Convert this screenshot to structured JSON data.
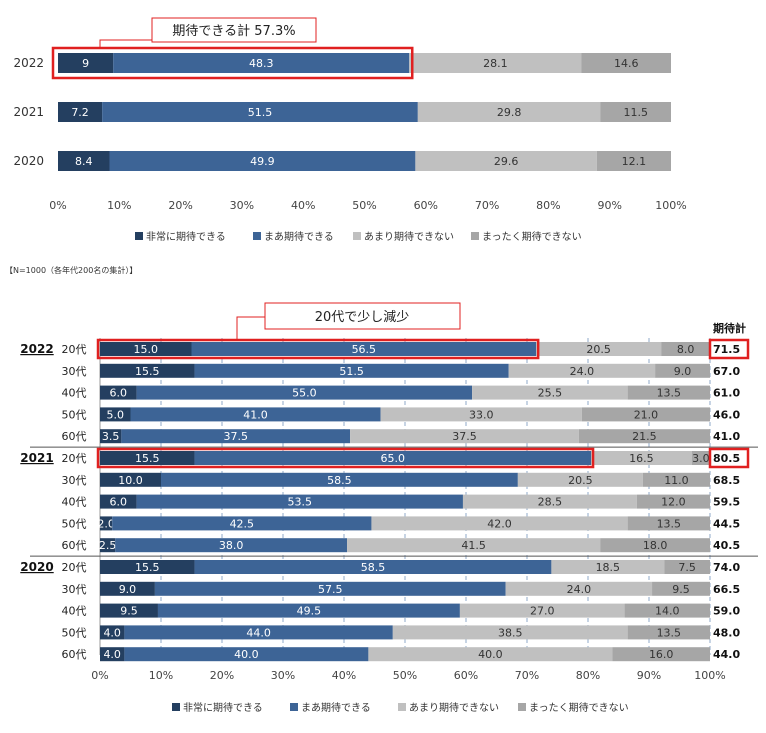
{
  "chart_data": [
    {
      "type": "bar",
      "orientation": "horizontal",
      "stacked": true,
      "categories": [
        "2022",
        "2021",
        "2020"
      ],
      "series": [
        {
          "name": "非常に期待できる",
          "values": [
            9,
            7.2,
            8.4
          ],
          "labels": [
            "9",
            "7.2",
            "8.4"
          ],
          "color": "#243f60"
        },
        {
          "name": "まあ期待できる",
          "values": [
            48.3,
            51.5,
            49.9
          ],
          "labels": [
            "48.3",
            "51.5",
            "49.9"
          ],
          "color": "#3d6496"
        },
        {
          "name": "あまり期待できない",
          "values": [
            28.1,
            29.8,
            29.6
          ],
          "labels": [
            "28.1",
            "29.8",
            "29.6"
          ],
          "color": "#c0c0c0"
        },
        {
          "name": "まったく期待できない",
          "values": [
            14.6,
            11.5,
            12.1
          ],
          "labels": [
            "14.6",
            "11.5",
            "12.1"
          ],
          "color": "#a6a6a6"
        }
      ],
      "xlim": [
        0,
        100
      ],
      "xticks": [
        "0%",
        "10%",
        "20%",
        "30%",
        "40%",
        "50%",
        "60%",
        "70%",
        "80%",
        "90%",
        "100%"
      ],
      "grid": false,
      "legend_position": "bottom",
      "callout": {
        "text": "期待できる計  57.3%",
        "category": "2022"
      }
    },
    {
      "type": "bar",
      "orientation": "horizontal",
      "stacked": true,
      "note": "【N=1000（各年代200名の集計）】",
      "total_header": "期待計",
      "groups": [
        "2022",
        "2021",
        "2020"
      ],
      "categories": [
        "20代",
        "30代",
        "40代",
        "50代",
        "60代"
      ],
      "rows": [
        {
          "group": "2022",
          "category": "20代",
          "values": [
            15.0,
            56.5,
            20.5,
            8.0
          ],
          "labels": [
            "15.0",
            "56.5",
            "20.5",
            "8.0"
          ],
          "total": "71.5"
        },
        {
          "group": "2022",
          "category": "30代",
          "values": [
            15.5,
            51.5,
            24.0,
            9.0
          ],
          "labels": [
            "15.5",
            "51.5",
            "24.0",
            "9.0"
          ],
          "total": "67.0"
        },
        {
          "group": "2022",
          "category": "40代",
          "values": [
            6.0,
            55.0,
            25.5,
            13.5
          ],
          "labels": [
            "6.0",
            "55.0",
            "25.5",
            "13.5"
          ],
          "total": "61.0"
        },
        {
          "group": "2022",
          "category": "50代",
          "values": [
            5.0,
            41.0,
            33.0,
            21.0
          ],
          "labels": [
            "5.0",
            "41.0",
            "33.0",
            "21.0"
          ],
          "total": "46.0"
        },
        {
          "group": "2022",
          "category": "60代",
          "values": [
            3.5,
            37.5,
            37.5,
            21.5
          ],
          "labels": [
            "3.5",
            "37.5",
            "37.5",
            "21.5"
          ],
          "total": "41.0"
        },
        {
          "group": "2021",
          "category": "20代",
          "values": [
            15.5,
            65.0,
            16.5,
            3.0
          ],
          "labels": [
            "15.5",
            "65.0",
            "16.5",
            "3.0"
          ],
          "total": "80.5"
        },
        {
          "group": "2021",
          "category": "30代",
          "values": [
            10.0,
            58.5,
            20.5,
            11.0
          ],
          "labels": [
            "10.0",
            "58.5",
            "20.5",
            "11.0"
          ],
          "total": "68.5"
        },
        {
          "group": "2021",
          "category": "40代",
          "values": [
            6.0,
            53.5,
            28.5,
            12.0
          ],
          "labels": [
            "6.0",
            "53.5",
            "28.5",
            "12.0"
          ],
          "total": "59.5"
        },
        {
          "group": "2021",
          "category": "50代",
          "values": [
            2.0,
            42.5,
            42.0,
            13.5
          ],
          "labels": [
            "2.0",
            "42.5",
            "42.0",
            "13.5"
          ],
          "total": "44.5"
        },
        {
          "group": "2021",
          "category": "60代",
          "values": [
            2.5,
            38.0,
            41.5,
            18.0
          ],
          "labels": [
            "2.5",
            "38.0",
            "41.5",
            "18.0"
          ],
          "total": "40.5"
        },
        {
          "group": "2020",
          "category": "20代",
          "values": [
            15.5,
            58.5,
            18.5,
            7.5
          ],
          "labels": [
            "15.5",
            "58.5",
            "18.5",
            "7.5"
          ],
          "total": "74.0"
        },
        {
          "group": "2020",
          "category": "30代",
          "values": [
            9.0,
            57.5,
            24.0,
            9.5
          ],
          "labels": [
            "9.0",
            "57.5",
            "24.0",
            "9.5"
          ],
          "total": "66.5"
        },
        {
          "group": "2020",
          "category": "40代",
          "values": [
            9.5,
            49.5,
            27.0,
            14.0
          ],
          "labels": [
            "9.5",
            "49.5",
            "27.0",
            "14.0"
          ],
          "total": "59.0"
        },
        {
          "group": "2020",
          "category": "50代",
          "values": [
            4.0,
            44.0,
            38.5,
            13.5
          ],
          "labels": [
            "4.0",
            "44.0",
            "38.5",
            "13.5"
          ],
          "total": "48.0"
        },
        {
          "group": "2020",
          "category": "60代",
          "values": [
            4.0,
            40.0,
            40.0,
            16.0
          ],
          "labels": [
            "4.0",
            "40.0",
            "40.0",
            "16.0"
          ],
          "total": "44.0"
        }
      ],
      "series": [
        {
          "name": "非常に期待できる",
          "color": "#243f60"
        },
        {
          "name": "まあ期待できる",
          "color": "#3d6496"
        },
        {
          "name": "あまり期待できない",
          "color": "#c0c0c0"
        },
        {
          "name": "まったく期待できない",
          "color": "#a6a6a6"
        }
      ],
      "xlim": [
        0,
        100
      ],
      "xticks": [
        "0%",
        "10%",
        "20%",
        "30%",
        "40%",
        "50%",
        "60%",
        "70%",
        "80%",
        "90%",
        "100%"
      ],
      "grid": "vertical dashed",
      "legend_position": "bottom",
      "callout": {
        "text": "20代で少し減少"
      }
    }
  ]
}
